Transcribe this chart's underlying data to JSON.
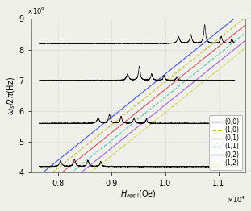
{
  "xlim": [
    7500,
    11500
  ],
  "ylim": [
    4000000000.0,
    9000000000.0
  ],
  "xlabel": "$H_{\\mathrm{appl}}$(Oe)",
  "ylabel": "$\\omega_s/2\\pi$(Hz)",
  "xticks": [
    8000,
    9000,
    10000,
    11000
  ],
  "xtick_labels": [
    "0.8",
    "0.9",
    "1.0",
    "1.1"
  ],
  "yticks": [
    4000000000.0,
    5000000000.0,
    6000000000.0,
    7000000000.0,
    8000000000.0,
    9000000000.0
  ],
  "ytick_labels": [
    "4",
    "5",
    "6",
    "7",
    "8",
    "9"
  ],
  "line_params": [
    {
      "label": "(0,0)",
      "color": "#3344cc",
      "linestyle": "-",
      "slope": 1400000.0,
      "intercept": -6800000000.0
    },
    {
      "label": "(1,0)",
      "color": "#bbbb22",
      "linestyle": "--",
      "slope": 1400000.0,
      "intercept": -7050000000.0
    },
    {
      "label": "(0,1)",
      "color": "#cc4455",
      "linestyle": "-",
      "slope": 1400000.0,
      "intercept": -7300000000.0
    },
    {
      "label": "(1,1)",
      "color": "#44bbaa",
      "linestyle": "--",
      "slope": 1400000.0,
      "intercept": -7550000000.0
    },
    {
      "label": "(0,2)",
      "color": "#9955cc",
      "linestyle": "-",
      "slope": 1400000.0,
      "intercept": -7800000000.0
    },
    {
      "label": "(1,2)",
      "color": "#cccc33",
      "linestyle": "--",
      "slope": 1400000.0,
      "intercept": -8050000000.0
    }
  ],
  "freq_levels": [
    4200000000.0,
    5600000000.0,
    7000000000.0,
    8200000000.0
  ],
  "field_starts": [
    7650,
    7650,
    7650,
    7650
  ],
  "field_ends": [
    11300,
    11300,
    11300,
    11300
  ],
  "peak_data": [
    [
      [
        8050,
        180000000.0,
        25
      ],
      [
        8310,
        220000000.0,
        22
      ],
      [
        8560,
        200000000.0,
        20
      ],
      [
        8800,
        160000000.0,
        18
      ]
    ],
    [
      [
        8750,
        180000000.0,
        25
      ],
      [
        8960,
        280000000.0,
        22
      ],
      [
        9180,
        220000000.0,
        20
      ],
      [
        9420,
        180000000.0,
        18
      ],
      [
        9650,
        140000000.0,
        16
      ]
    ],
    [
      [
        9300,
        200000000.0,
        25
      ],
      [
        9520,
        450000000.0,
        20
      ],
      [
        9750,
        200000000.0,
        20
      ],
      [
        9980,
        160000000.0,
        18
      ],
      [
        10220,
        130000000.0,
        16
      ]
    ],
    [
      [
        10250,
        220000000.0,
        25
      ],
      [
        10480,
        280000000.0,
        22
      ],
      [
        10740,
        600000000.0,
        20
      ],
      [
        11050,
        220000000.0,
        20
      ],
      [
        11250,
        150000000.0,
        16
      ]
    ]
  ],
  "noise_level": 6000000.0,
  "background_color": "#f0f0eb",
  "figsize": [
    3.11,
    2.62
  ],
  "dpi": 100
}
